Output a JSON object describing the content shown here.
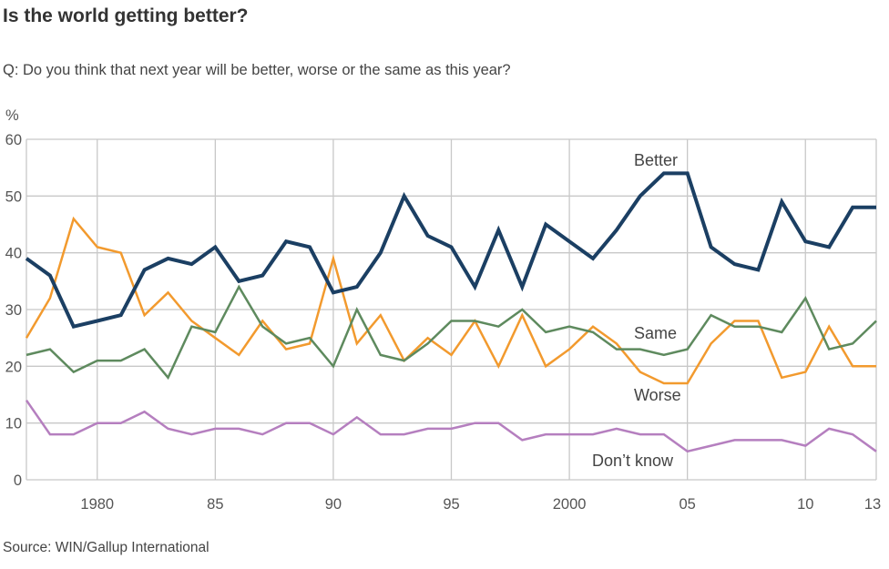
{
  "title": "Is the world getting better?",
  "subtitle": "Q: Do you think that next year will be better, worse or the same as this year?",
  "source": "Source: WIN/Gallup International",
  "chart_data": {
    "type": "line",
    "ylabel": "%",
    "ylim": [
      0,
      60
    ],
    "xlim": [
      1977,
      2013
    ],
    "yticks": [
      0,
      10,
      20,
      30,
      40,
      50,
      60
    ],
    "xticks": [
      {
        "year": 1980,
        "label": "1980"
      },
      {
        "year": 1985,
        "label": "85"
      },
      {
        "year": 1990,
        "label": "90"
      },
      {
        "year": 1995,
        "label": "95"
      },
      {
        "year": 2000,
        "label": "2000"
      },
      {
        "year": 2005,
        "label": "05"
      },
      {
        "year": 2010,
        "label": "10"
      },
      {
        "year": 2013,
        "label": "13"
      }
    ],
    "grid": true,
    "x": [
      1977,
      1978,
      1979,
      1980,
      1981,
      1982,
      1983,
      1984,
      1985,
      1986,
      1987,
      1988,
      1989,
      1990,
      1991,
      1992,
      1993,
      1994,
      1995,
      1996,
      1997,
      1998,
      1999,
      2000,
      2001,
      2002,
      2003,
      2004,
      2005,
      2006,
      2007,
      2008,
      2009,
      2010,
      2011,
      2012,
      2013
    ],
    "series": [
      {
        "name": "Better",
        "color": "#1b3f63",
        "values": [
          39,
          36,
          27,
          28,
          29,
          37,
          39,
          38,
          41,
          35,
          36,
          42,
          41,
          33,
          34,
          40,
          50,
          43,
          41,
          34,
          44,
          34,
          45,
          42,
          39,
          44,
          50,
          54,
          54,
          41,
          38,
          37,
          49,
          42,
          41,
          48,
          48
        ]
      },
      {
        "name": "Same",
        "color": "#5e8a5e",
        "values": [
          22,
          23,
          19,
          21,
          21,
          23,
          18,
          27,
          26,
          34,
          27,
          24,
          25,
          20,
          30,
          22,
          21,
          24,
          28,
          28,
          27,
          30,
          26,
          27,
          26,
          23,
          23,
          22,
          23,
          29,
          27,
          27,
          26,
          32,
          23,
          24,
          28
        ]
      },
      {
        "name": "Worse",
        "color": "#f29a2e",
        "values": [
          25,
          32,
          46,
          41,
          40,
          29,
          33,
          28,
          25,
          22,
          28,
          23,
          24,
          39,
          24,
          29,
          21,
          25,
          22,
          28,
          20,
          29,
          20,
          23,
          27,
          24,
          19,
          17,
          17,
          24,
          28,
          28,
          18,
          19,
          27,
          20,
          20
        ]
      },
      {
        "name": "Don’t know",
        "color": "#b57fbf",
        "values": [
          14,
          8,
          8,
          10,
          10,
          12,
          9,
          8,
          9,
          9,
          8,
          10,
          10,
          8,
          11,
          8,
          8,
          9,
          9,
          10,
          10,
          7,
          8,
          8,
          8,
          9,
          8,
          8,
          5,
          6,
          7,
          7,
          7,
          6,
          9,
          8,
          5
        ]
      }
    ]
  }
}
